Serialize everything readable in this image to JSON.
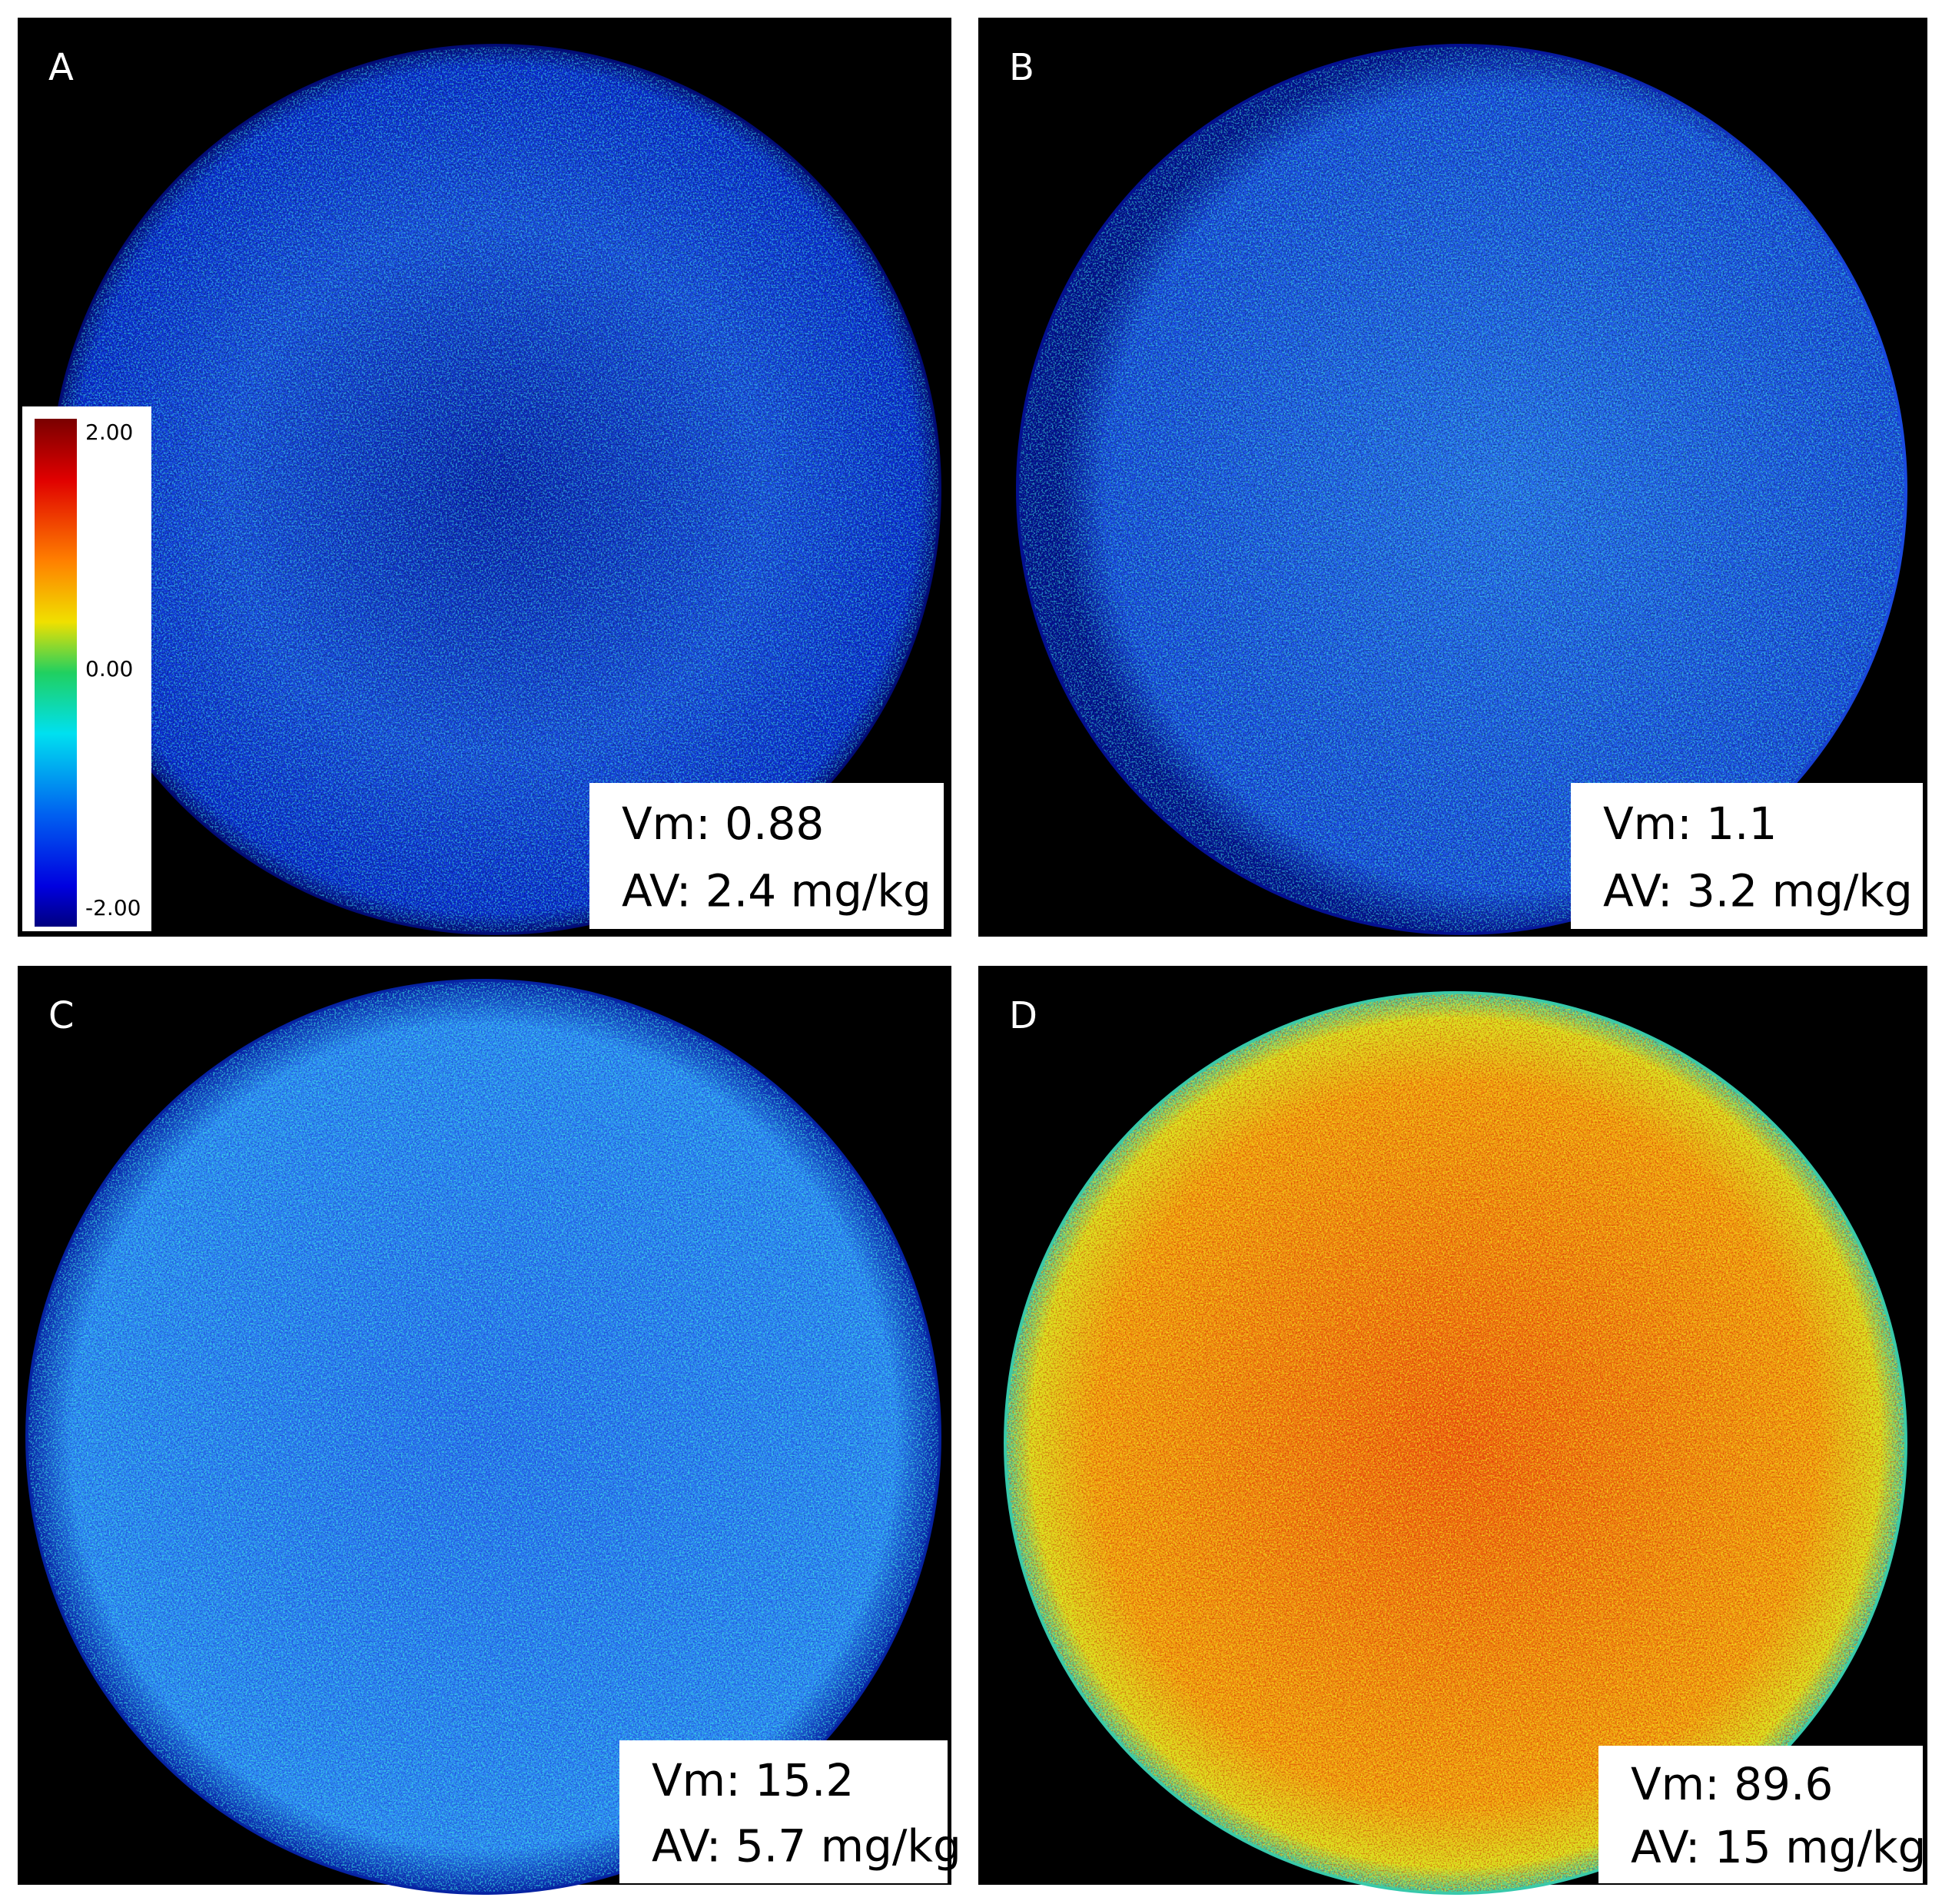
{
  "panels": [
    {
      "label": "A",
      "vm": "Vm: 0.88",
      "av": "AV: 2.4 mg/kg"
    },
    {
      "label": "B",
      "vm": "Vm: 1.1",
      "av": "AV: 3.2 mg/kg"
    },
    {
      "label": "C",
      "vm": "Vm: 15.2",
      "av": "AV: 5.7 mg/kg"
    },
    {
      "label": "D",
      "vm": "Vm: 89.6",
      "av": "AV: 15 mg/kg"
    }
  ],
  "colorbar": {
    "ticks": [
      "2.00",
      "0.00",
      "-2.00"
    ]
  }
}
